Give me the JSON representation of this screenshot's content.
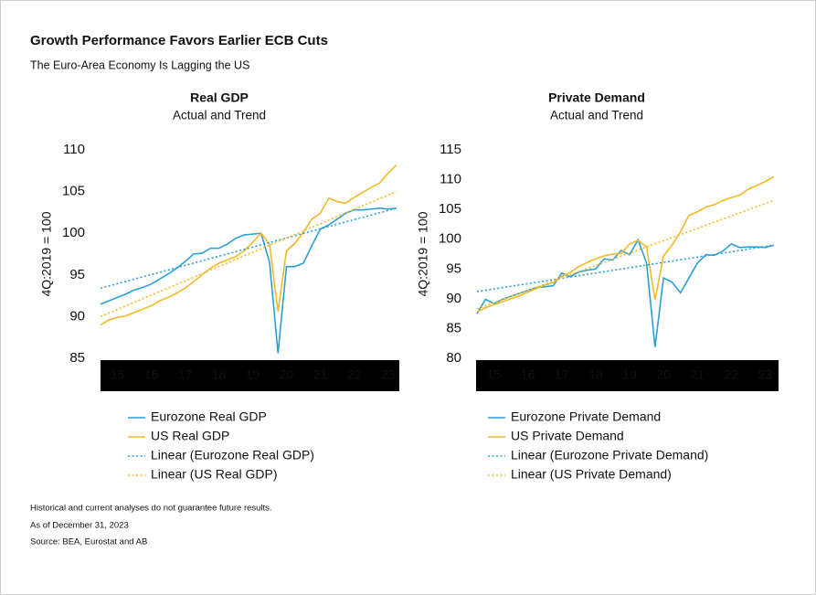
{
  "header": {
    "title": "Growth Performance Favors Earlier ECB Cuts",
    "subtitle": "The Euro-Area Economy Is Lagging the US"
  },
  "notes": [
    "Historical and current analyses do not guarantee future results.",
    "As of December 31, 2023",
    "Source: BEA, Eurostat and AB"
  ],
  "chart_data": [
    {
      "type": "line",
      "title": "Real GDP",
      "subtitle": "Actual and Trend",
      "ylabel": "4Q:2019 = 100",
      "x": [
        15,
        15.25,
        15.5,
        15.75,
        16,
        16.25,
        16.5,
        16.75,
        17,
        17.25,
        17.5,
        17.75,
        18,
        18.25,
        18.5,
        18.75,
        19,
        19.25,
        19.5,
        19.75,
        20,
        20.25,
        20.5,
        20.75,
        21,
        21.25,
        21.5,
        21.75,
        22,
        22.25,
        22.5,
        22.75,
        23,
        23.25,
        23.5,
        23.75
      ],
      "xlim": [
        15,
        24
      ],
      "xticks": [
        {
          "value": 15.5,
          "label": "15"
        },
        {
          "value": 16.5,
          "label": "16"
        },
        {
          "value": 17.5,
          "label": "17"
        },
        {
          "value": 18.5,
          "label": "18"
        },
        {
          "value": 19.5,
          "label": "19"
        },
        {
          "value": 20.5,
          "label": "20"
        },
        {
          "value": 21.5,
          "label": "21"
        },
        {
          "value": 22.5,
          "label": "22"
        },
        {
          "value": 23.5,
          "label": "23"
        }
      ],
      "ylim": [
        85,
        110
      ],
      "yticks": [
        85,
        90,
        95,
        100,
        105,
        110
      ],
      "series": [
        {
          "name": "Eurozone Real GDP",
          "color": "#2a9fd6",
          "style": "solid",
          "values": [
            91.5,
            91.9,
            92.3,
            92.7,
            93.2,
            93.5,
            93.9,
            94.5,
            95.1,
            95.8,
            96.6,
            97.5,
            97.6,
            98.2,
            98.2,
            98.7,
            99.4,
            99.8,
            99.9,
            100.0,
            96.5,
            85.6,
            96.0,
            96.0,
            96.4,
            98.5,
            100.5,
            101.0,
            101.7,
            102.4,
            102.8,
            102.8,
            102.9,
            103.0,
            102.9,
            103.0
          ]
        },
        {
          "name": "US Real GDP",
          "color": "#f2b927",
          "style": "solid",
          "values": [
            89.0,
            89.6,
            89.9,
            90.1,
            90.5,
            90.9,
            91.3,
            91.9,
            92.3,
            92.8,
            93.4,
            94.2,
            95.0,
            95.8,
            96.4,
            96.8,
            97.2,
            97.9,
            98.9,
            100.0,
            98.7,
            90.6,
            97.9,
            98.8,
            100.1,
            101.7,
            102.4,
            104.2,
            103.8,
            103.6,
            104.3,
            104.9,
            105.5,
            106.0,
            107.2,
            108.2
          ]
        },
        {
          "name": "Linear (Eurozone Real GDP)",
          "color": "#2a9fd6",
          "style": "dotted",
          "x": [
            15,
            23.75
          ],
          "values": [
            93.4,
            103.0
          ]
        },
        {
          "name": "Linear (US Real GDP)",
          "color": "#f2b927",
          "style": "dotted",
          "x": [
            15,
            23.75
          ],
          "values": [
            90.0,
            105.0
          ]
        }
      ]
    },
    {
      "type": "line",
      "title": "Private Demand",
      "subtitle": "Actual and Trend",
      "ylabel": "4Q:2019 = 100",
      "x": [
        15,
        15.25,
        15.5,
        15.75,
        16,
        16.25,
        16.5,
        16.75,
        17,
        17.25,
        17.5,
        17.75,
        18,
        18.25,
        18.5,
        18.75,
        19,
        19.25,
        19.5,
        19.75,
        20,
        20.25,
        20.5,
        20.75,
        21,
        21.25,
        21.5,
        21.75,
        22,
        22.25,
        22.5,
        22.75,
        23,
        23.25,
        23.5,
        23.75
      ],
      "xlim": [
        15,
        24
      ],
      "xticks": [
        {
          "value": 15.5,
          "label": "15"
        },
        {
          "value": 16.5,
          "label": "16"
        },
        {
          "value": 17.5,
          "label": "17"
        },
        {
          "value": 18.5,
          "label": "18"
        },
        {
          "value": 19.5,
          "label": "19"
        },
        {
          "value": 20.5,
          "label": "20"
        },
        {
          "value": 21.5,
          "label": "21"
        },
        {
          "value": 22.5,
          "label": "22"
        },
        {
          "value": 23.5,
          "label": "23"
        }
      ],
      "ylim": [
        80,
        115
      ],
      "yticks": [
        80,
        85,
        90,
        95,
        100,
        105,
        110,
        115
      ],
      "series": [
        {
          "name": "Eurozone Private Demand",
          "color": "#2a9fd6",
          "style": "solid",
          "values": [
            87.5,
            89.9,
            89.2,
            89.9,
            90.4,
            90.9,
            91.4,
            91.9,
            92.0,
            92.2,
            94.3,
            93.7,
            94.5,
            94.8,
            95.0,
            96.7,
            96.5,
            98.1,
            97.4,
            99.9,
            96.0,
            81.9,
            93.5,
            92.8,
            91.0,
            93.5,
            96.0,
            97.4,
            97.3,
            98.0,
            99.2,
            98.6,
            98.7,
            98.7,
            98.6,
            99.0
          ]
        },
        {
          "name": "US Private Demand",
          "color": "#f2b927",
          "style": "solid",
          "values": [
            87.8,
            88.5,
            89.0,
            89.5,
            90.0,
            90.5,
            91.1,
            91.7,
            92.3,
            92.7,
            93.8,
            94.4,
            95.4,
            96.1,
            96.7,
            97.2,
            97.5,
            97.6,
            99.2,
            99.8,
            98.7,
            89.8,
            97.2,
            99.0,
            101.2,
            104.0,
            104.6,
            105.4,
            105.8,
            106.5,
            107.0,
            107.4,
            108.4,
            109.0,
            109.7,
            110.5
          ]
        },
        {
          "name": "Linear (Eurozone Private Demand)",
          "color": "#2a9fd6",
          "style": "dotted",
          "x": [
            15,
            23.75
          ],
          "values": [
            91.2,
            99.0
          ]
        },
        {
          "name": "Linear (US Private Demand)",
          "color": "#f2b927",
          "style": "dotted",
          "x": [
            15,
            23.75
          ],
          "values": [
            88.3,
            106.5
          ]
        }
      ]
    }
  ]
}
